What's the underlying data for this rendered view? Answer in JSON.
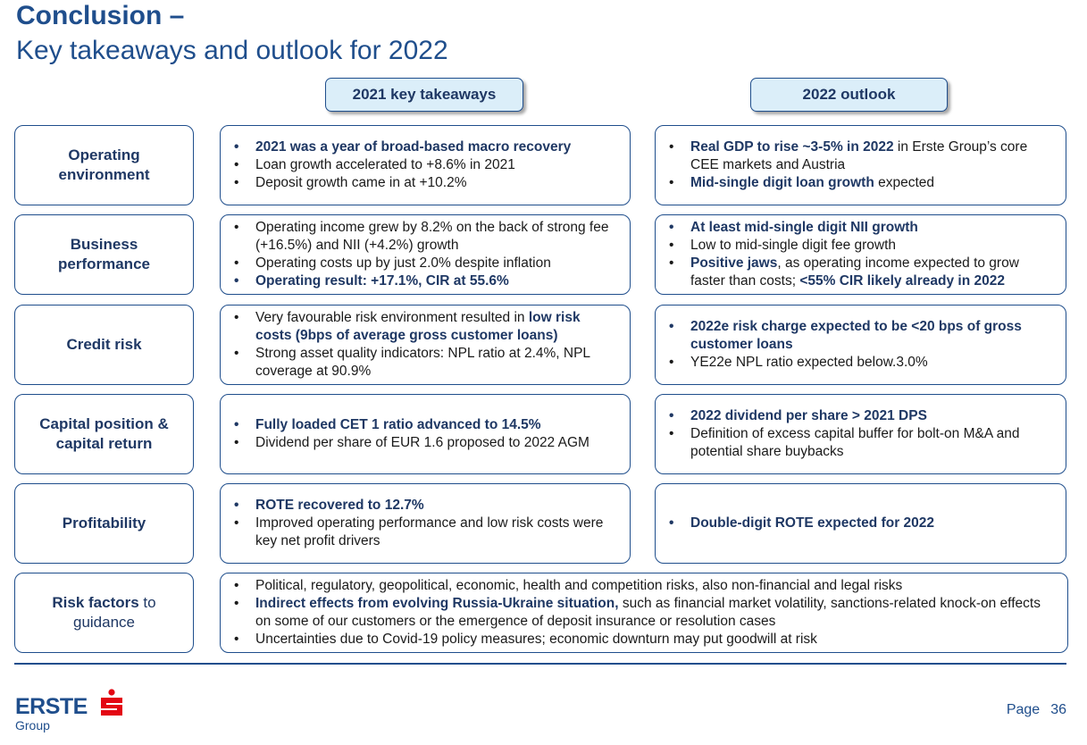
{
  "title": {
    "line1": "Conclusion –",
    "line2": "Key takeaways and outlook for 2022"
  },
  "headers": {
    "takeaways": "2021 key takeaways",
    "outlook": "2022 outlook"
  },
  "rows": {
    "operating": {
      "label_line1": "Operating",
      "label_line2": "environment",
      "left": [
        "2021 was a year of broad-based macro recovery",
        "Loan growth accelerated  to +8.6% in 2021",
        "Deposit growth came in at +10.2%"
      ],
      "right": {
        "i0_bold": "Real GDP to rise ~3-5% in 2022",
        "i0_rest": " in Erste Group’s core CEE markets and Austria",
        "i1_bold": "Mid-single digit loan growth",
        "i1_rest": " expected"
      }
    },
    "business": {
      "label_line1": "Business",
      "label_line2": "performance",
      "left": [
        "Operating income grew by 8.2% on the back of strong fee (+16.5%) and NII (+4.2%) growth",
        "Operating costs up by just 2.0% despite inflation",
        "Operating result: +17.1%, CIR at 55.6%"
      ],
      "right": {
        "i0": "At least mid-single digit NII growth",
        "i1": "Low to mid-single digit fee growth",
        "i2_bold": "Positive jaws",
        "i2_rest": ", as operating income expected to grow faster than costs; ",
        "i2_bold2": "<55% CIR likely already in 2022"
      }
    },
    "credit": {
      "label": "Credit risk",
      "left": {
        "i0_rest": "Very favourable risk environment resulted in ",
        "i0_bold": "low risk costs (9bps of average gross customer loans)",
        "i1": "Strong asset quality indicators: NPL ratio at 2.4%, NPL coverage at 90.9%"
      },
      "right": [
        "2022e risk charge expected to be <20 bps of gross customer loans",
        "YE22e NPL ratio expected below.3.0%"
      ]
    },
    "capital": {
      "label_line1": "Capital position &",
      "label_line2": "capital return",
      "left": [
        "Fully loaded CET 1 ratio advanced to 14.5%",
        "Dividend per share of EUR 1.6 proposed to 2022 AGM"
      ],
      "right": [
        "2022 dividend per share > 2021 DPS",
        "Definition of excess capital buffer for bolt-on M&A and potential share buybacks"
      ]
    },
    "profitability": {
      "label": "Profitability",
      "left": [
        "ROTE recovered to 12.7%",
        "Improved operating performance and low risk costs were key net profit drivers"
      ],
      "right": [
        "Double-digit ROTE expected for 2022"
      ]
    },
    "risk": {
      "label_bold": "Risk factors",
      "label_rest1": " to",
      "label_line2": "guidance",
      "items": {
        "i0": "Political, regulatory, geopolitical, economic, health  and competition risks, also non-financial and legal risks",
        "i1_bold": "Indirect effects from evolving Russia-Ukraine situation,",
        "i1_rest": " such as financial market volatility, sanctions-related knock-on effects on some of our customers or the emergence of deposit insurance or resolution cases",
        "i2": "Uncertainties due to Covid-19 policy measures; economic downturn may put goodwill at risk"
      }
    }
  },
  "bullet": "•",
  "footer": {
    "logo_word": "ERSTE",
    "logo_sub": "Group",
    "page_label": "Page",
    "page_number": "36"
  },
  "colors": {
    "brand_blue": "#1f4e8c",
    "header_fill": "#dbeef9",
    "logo_red": "#e30613"
  }
}
